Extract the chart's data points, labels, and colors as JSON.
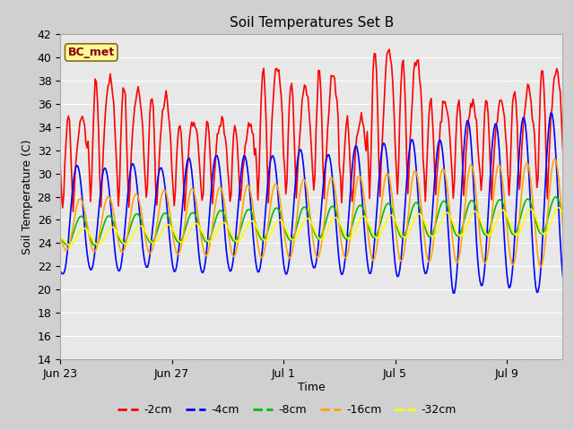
{
  "title": "Soil Temperatures Set B",
  "xlabel": "Time",
  "ylabel": "Soil Temperature (C)",
  "ylim": [
    14,
    42
  ],
  "xtick_labels": [
    "Jun 23",
    "Jun 27",
    "Jul 1",
    "Jul 5",
    "Jul 9"
  ],
  "xtick_positions": [
    0,
    4,
    8,
    12,
    16
  ],
  "annotation_text": "BC_met",
  "annotation_color": "#8B0000",
  "annotation_bg": "#FFFF99",
  "annotation_border": "#8B6914",
  "fig_bg": "#D0D0D0",
  "plot_bg": "#E8E8E8",
  "grid_color": "#FFFFFF",
  "series": [
    {
      "label": "-2cm",
      "color": "#FF0000",
      "linewidth": 1.2
    },
    {
      "label": "-4cm",
      "color": "#0000FF",
      "linewidth": 1.2
    },
    {
      "label": "-8cm",
      "color": "#00BB00",
      "linewidth": 1.2
    },
    {
      "label": "-16cm",
      "color": "#FFA500",
      "linewidth": 1.2
    },
    {
      "label": "-32cm",
      "color": "#FFFF00",
      "linewidth": 1.2
    }
  ],
  "figsize": [
    6.4,
    4.8
  ],
  "dpi": 100
}
